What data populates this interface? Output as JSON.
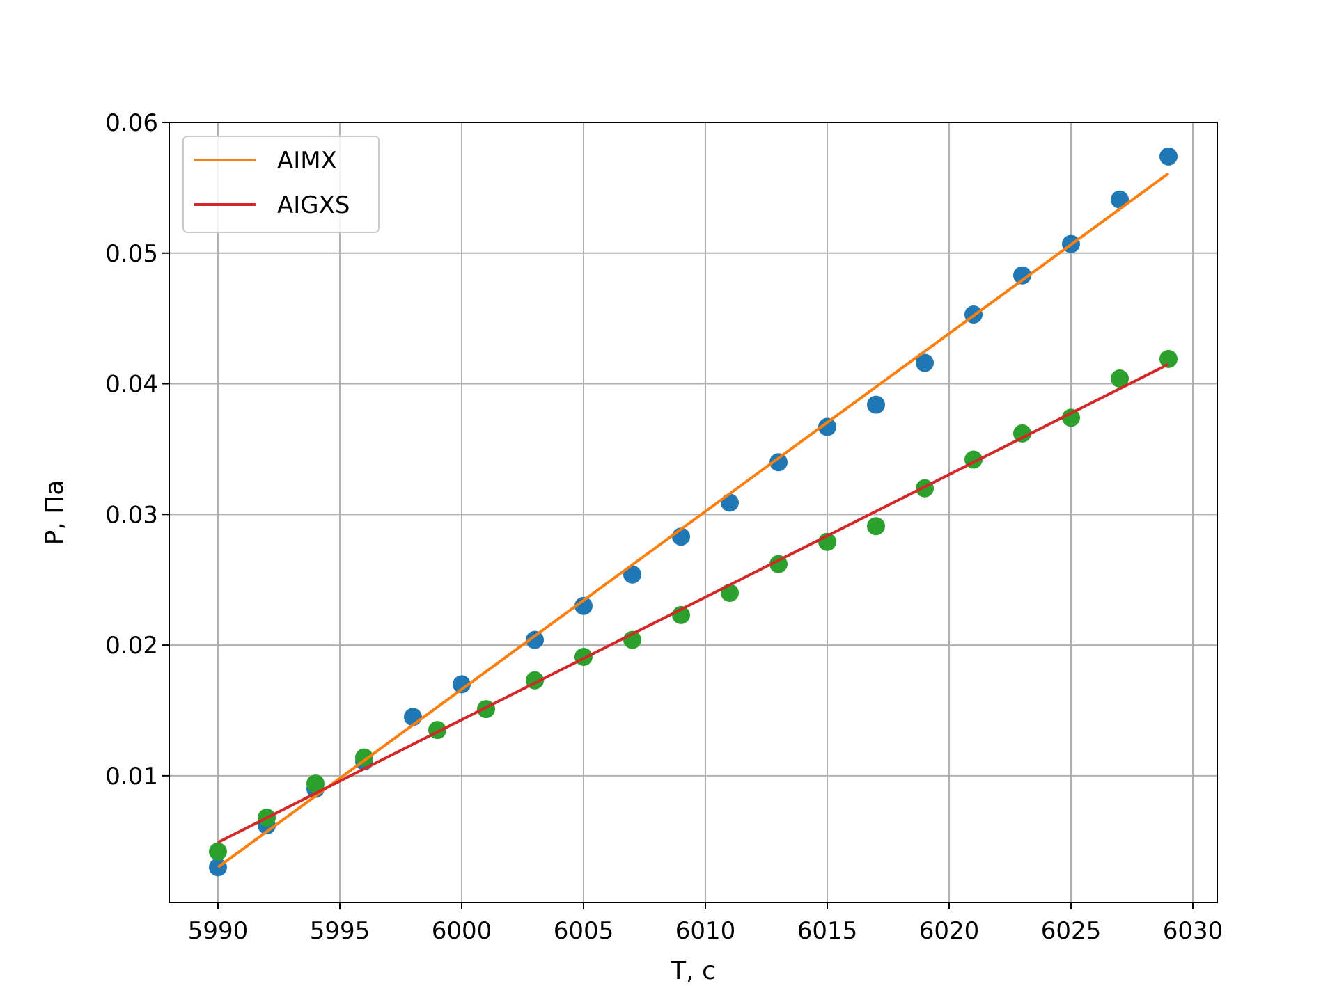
{
  "chart_data": {
    "type": "scatter",
    "xlabel": "T, c",
    "ylabel": "P, Па",
    "xlim": [
      5988,
      6031
    ],
    "ylim": [
      0.0003,
      0.06
    ],
    "xticks": [
      5990,
      5995,
      6000,
      6005,
      6010,
      6015,
      6020,
      6025,
      6030
    ],
    "yticks": [
      0.01,
      0.02,
      0.03,
      0.04,
      0.05,
      0.06
    ],
    "xtick_labels": [
      "5990",
      "5995",
      "6000",
      "6005",
      "6010",
      "6015",
      "6020",
      "6025",
      "6030"
    ],
    "ytick_labels": [
      "0.01",
      "0.02",
      "0.03",
      "0.04",
      "0.05",
      "0.06"
    ],
    "grid": true,
    "legend_position": "top-left",
    "scatter_series": [
      {
        "color": "#1f77b4",
        "x": [
          5990,
          5992,
          5994,
          5996,
          5998,
          6000,
          6003,
          6005,
          6007,
          6009,
          6011,
          6013,
          6015,
          6017,
          6019,
          6021,
          6023,
          6025,
          6027,
          6029
        ],
        "y": [
          0.003,
          0.0062,
          0.009,
          0.0111,
          0.0145,
          0.017,
          0.0204,
          0.023,
          0.0254,
          0.0283,
          0.0309,
          0.034,
          0.0367,
          0.0384,
          0.0416,
          0.0453,
          0.0483,
          0.0507,
          0.0541,
          0.0574
        ]
      },
      {
        "color": "#2ca02c",
        "x": [
          5990,
          5992,
          5994,
          5996,
          5999,
          6001,
          6003,
          6005,
          6007,
          6009,
          6011,
          6013,
          6015,
          6017,
          6019,
          6021,
          6023,
          6025,
          6027,
          6029
        ],
        "y": [
          0.0042,
          0.0068,
          0.0094,
          0.0114,
          0.0135,
          0.0151,
          0.0173,
          0.0191,
          0.0204,
          0.0223,
          0.024,
          0.0262,
          0.0279,
          0.0291,
          0.032,
          0.0342,
          0.0362,
          0.0374,
          0.0404,
          0.0419
        ]
      }
    ],
    "line_series": [
      {
        "name": "AIMX",
        "color": "#ff7f0e",
        "x": [
          5990,
          6029
        ],
        "y": [
          0.003,
          0.0561
        ]
      },
      {
        "name": "AIGXS",
        "color": "#d62728",
        "x": [
          5990,
          6029
        ],
        "y": [
          0.0049,
          0.0415
        ]
      }
    ]
  }
}
